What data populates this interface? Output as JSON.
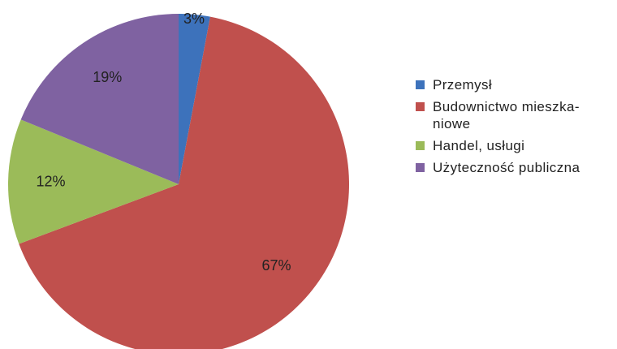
{
  "chart_data": {
    "type": "pie",
    "categories": [
      "Przemysł",
      "Budownictwo mieszka-niowe",
      "Handel, usługi",
      "Użyteczność publiczna"
    ],
    "values": [
      3,
      67,
      12,
      19
    ],
    "value_labels": [
      "3%",
      "67%",
      "12%",
      "19%"
    ],
    "colors": [
      "#3d72bb",
      "#c0504d",
      "#9bbb59",
      "#7f62a1"
    ],
    "legend": "right"
  }
}
